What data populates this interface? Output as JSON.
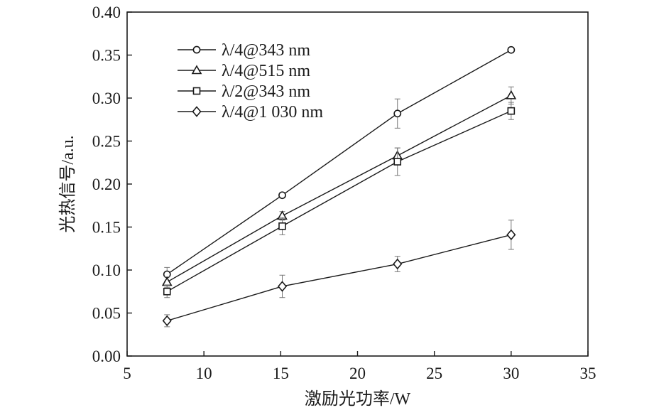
{
  "chart_data": {
    "type": "line",
    "xlabel": "激励光功率/W",
    "ylabel": "光热信号/a.u.",
    "xlim": [
      5,
      35
    ],
    "ylim": [
      0.0,
      0.4
    ],
    "x_ticks": [
      "5",
      "10",
      "15",
      "20",
      "25",
      "30",
      "35"
    ],
    "y_ticks": [
      "0.00",
      "0.05",
      "0.10",
      "0.15",
      "0.20",
      "0.25",
      "0.30",
      "0.35",
      "0.40"
    ],
    "grid": false,
    "legend_position": "top-left",
    "x": [
      7.6,
      15.1,
      22.6,
      30.0
    ],
    "series": [
      {
        "name": "λ/4@343 nm",
        "marker": "circle",
        "values": [
          0.095,
          0.187,
          0.282,
          0.356
        ],
        "errors": [
          0.008,
          0.003,
          0.017,
          0.003
        ]
      },
      {
        "name": "λ/4@515 nm",
        "marker": "triangle",
        "values": [
          0.086,
          0.163,
          0.233,
          0.303
        ],
        "errors": [
          0.006,
          0.005,
          0.009,
          0.01
        ]
      },
      {
        "name": "λ/2@343 nm",
        "marker": "square",
        "values": [
          0.075,
          0.151,
          0.226,
          0.285
        ],
        "errors": [
          0.007,
          0.01,
          0.016,
          0.01
        ]
      },
      {
        "name": "λ/4@1 030 nm",
        "marker": "diamond",
        "values": [
          0.041,
          0.081,
          0.107,
          0.141
        ],
        "errors": [
          0.007,
          0.013,
          0.009,
          0.017
        ]
      }
    ]
  }
}
